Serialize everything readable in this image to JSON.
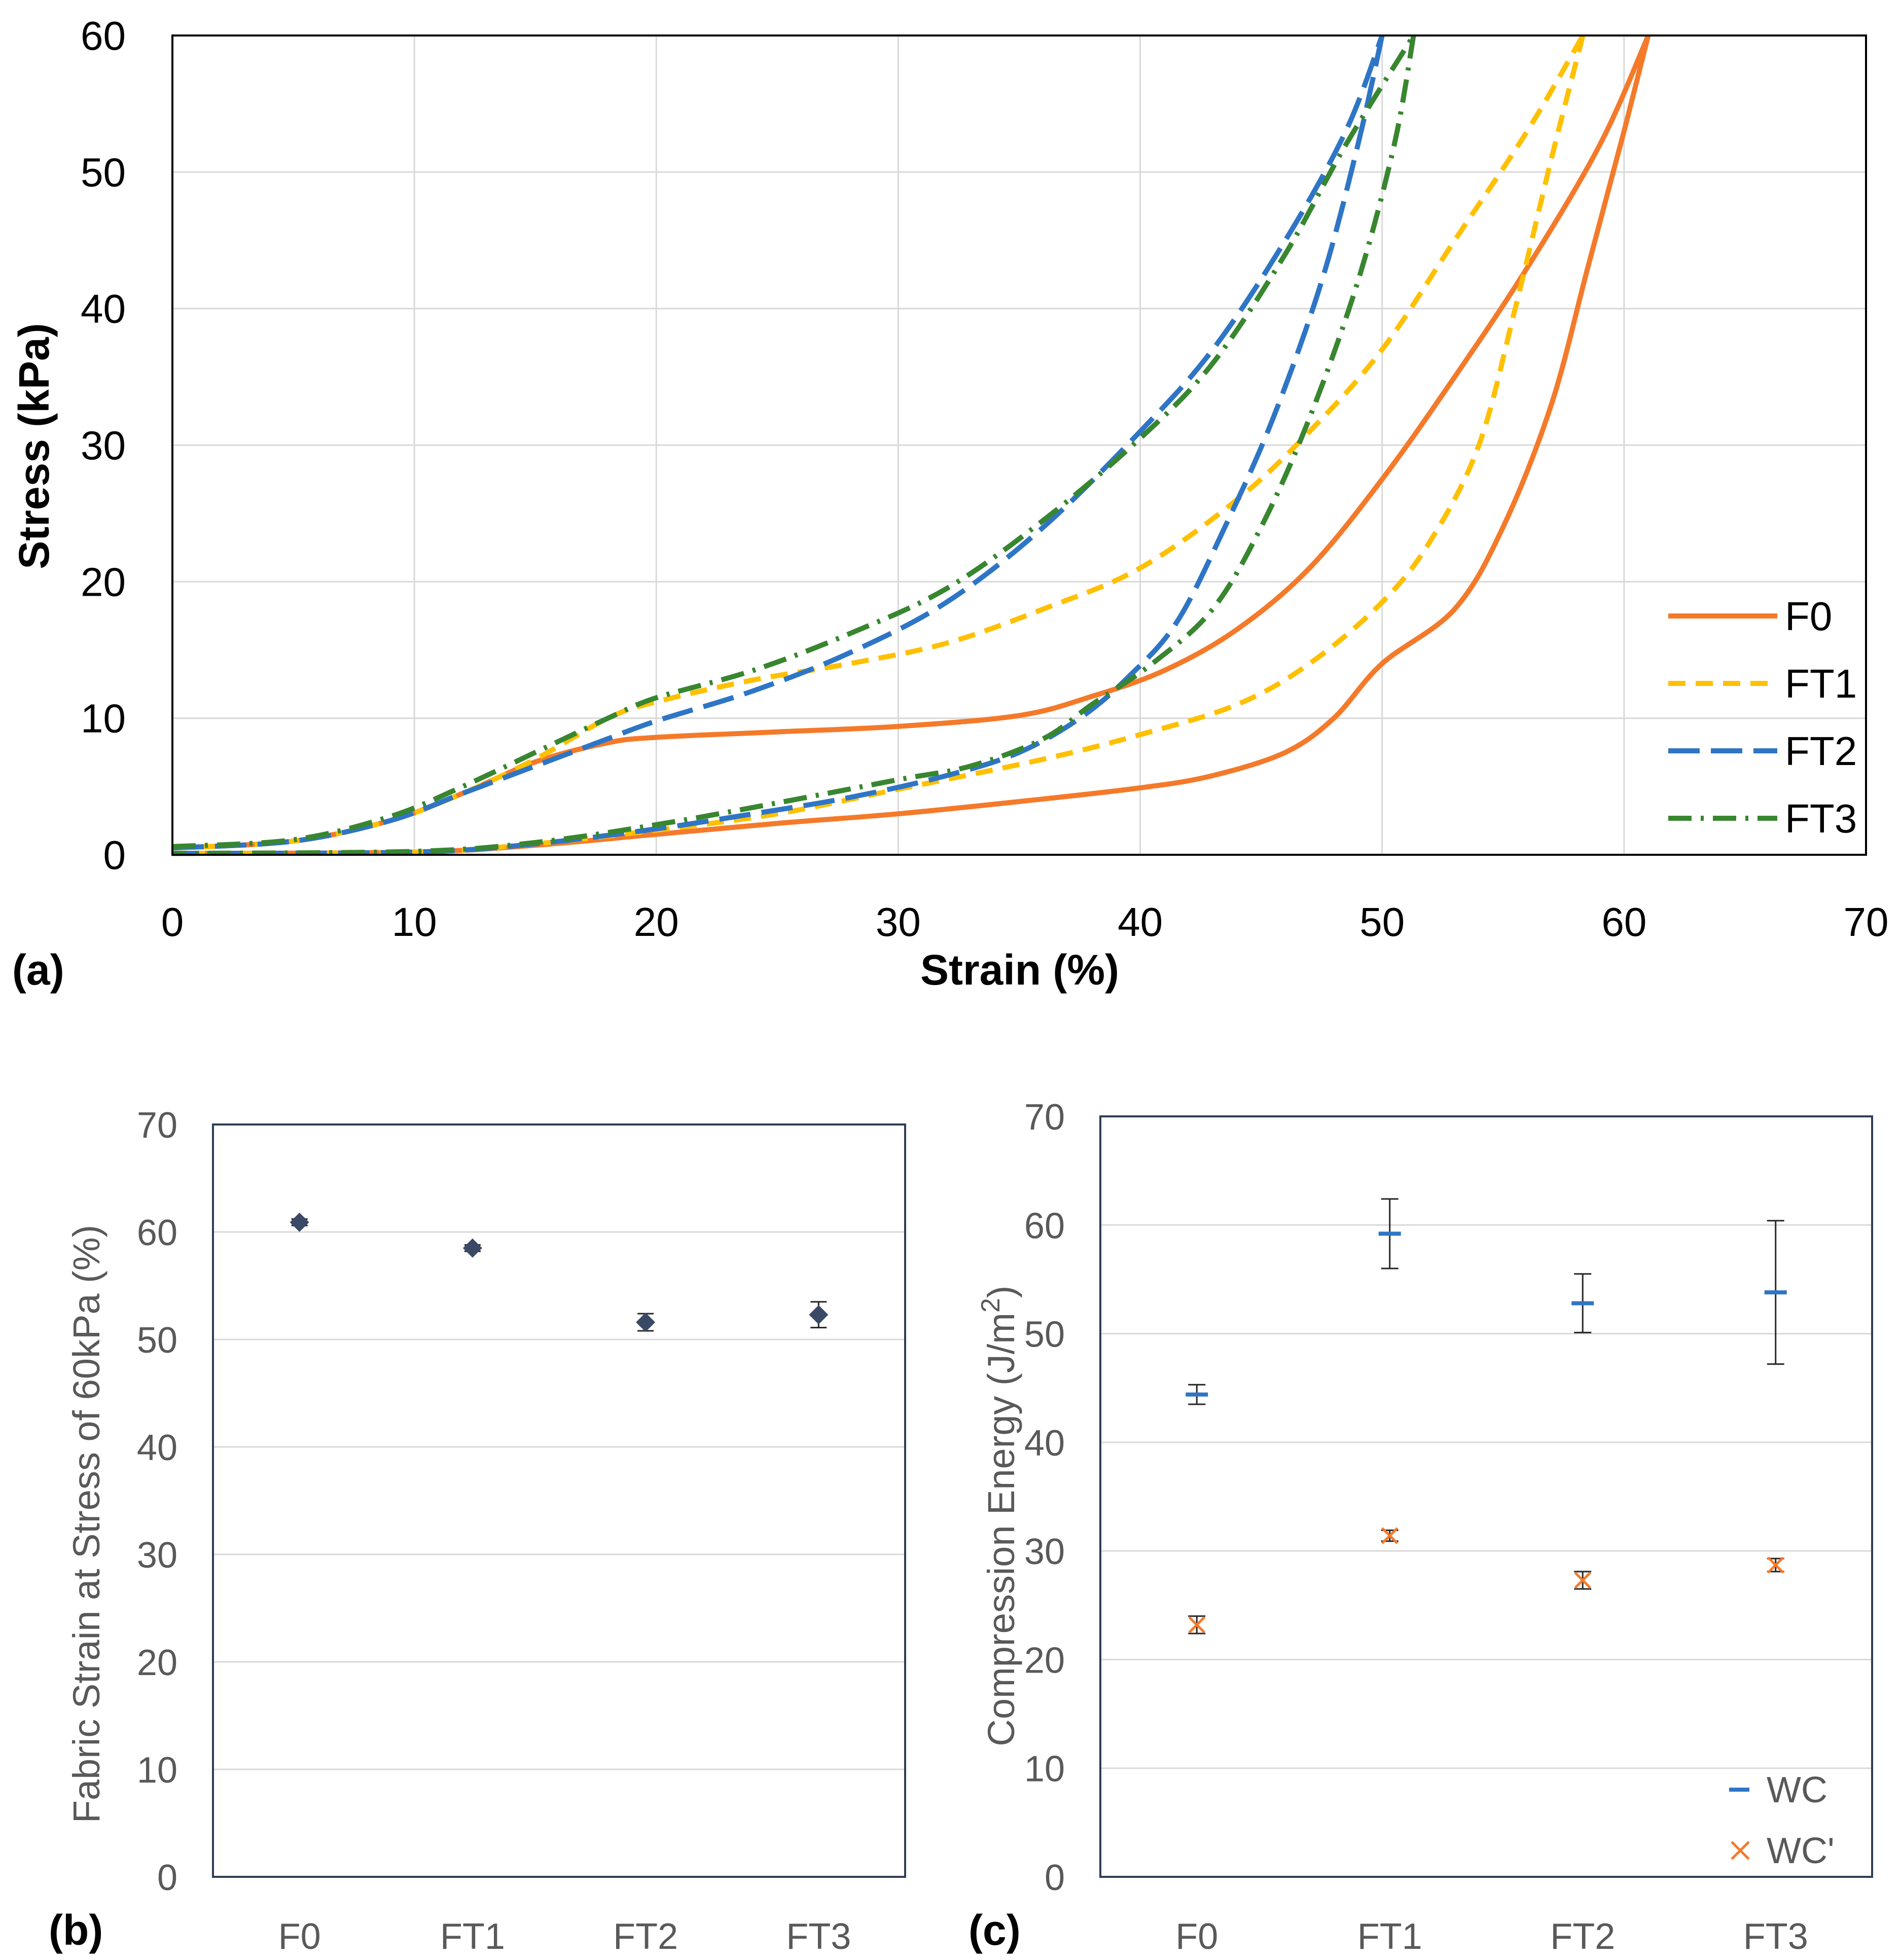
{
  "colors": {
    "F0": "#F47A2A",
    "FT1": "#FFC000",
    "FT2": "#2E75C6",
    "FT3": "#38862F",
    "marker_b": "#3A4A66",
    "WC": "#2E75C6",
    "WCp": "#F47A2A"
  },
  "chart_data": [
    {
      "id": "a",
      "type": "line",
      "panel_label": "(a)",
      "xlabel": "Strain (%)",
      "ylabel": "Stress (kPa)",
      "xlim": [
        0,
        70
      ],
      "ylim": [
        0,
        60
      ],
      "xticks": [
        "0",
        "10",
        "20",
        "30",
        "40",
        "50",
        "60",
        "70"
      ],
      "yticks": [
        "0",
        "10",
        "20",
        "30",
        "40",
        "50",
        "60"
      ],
      "grid": true,
      "legend": "bottom-right",
      "series": [
        {
          "name": "F0",
          "style": "solid",
          "loading": [
            [
              0,
              0.5
            ],
            [
              5,
              1
            ],
            [
              9,
              2.5
            ],
            [
              12,
              4.5
            ],
            [
              15,
              6.8
            ],
            [
              18,
              8.2
            ],
            [
              20,
              8.6
            ],
            [
              25,
              9
            ],
            [
              30,
              9.4
            ],
            [
              35,
              10.2
            ],
            [
              38,
              11.6
            ],
            [
              41,
              13.5
            ],
            [
              44,
              16.5
            ],
            [
              47,
              21
            ],
            [
              50,
              27.5
            ],
            [
              53,
              35
            ],
            [
              56,
              43
            ],
            [
              59,
              52
            ],
            [
              61,
              60
            ]
          ],
          "unloading": [
            [
              61,
              60
            ],
            [
              60,
              53
            ],
            [
              58.5,
              43
            ],
            [
              57,
              33
            ],
            [
              55,
              24
            ],
            [
              53,
              18
            ],
            [
              50,
              14
            ],
            [
              48,
              10
            ],
            [
              46,
              7.5
            ],
            [
              43,
              5.8
            ],
            [
              40,
              4.9
            ],
            [
              35,
              3.9
            ],
            [
              30,
              3
            ],
            [
              25,
              2.3
            ],
            [
              20,
              1.5
            ],
            [
              15,
              0.7
            ],
            [
              10,
              0.2
            ],
            [
              0,
              0.1
            ]
          ]
        },
        {
          "name": "FT1",
          "style": "dash",
          "loading": [
            [
              0,
              0.5
            ],
            [
              5,
              1
            ],
            [
              9,
              2.5
            ],
            [
              12,
              4.5
            ],
            [
              15,
              7
            ],
            [
              18,
              10
            ],
            [
              20,
              11.2
            ],
            [
              24,
              12.8
            ],
            [
              28,
              14
            ],
            [
              32,
              15.5
            ],
            [
              36,
              18
            ],
            [
              40,
              21
            ],
            [
              44,
              26
            ],
            [
              47,
              31
            ],
            [
              50,
              37
            ],
            [
              53,
              45
            ],
            [
              56,
              53
            ],
            [
              58.3,
              60
            ]
          ],
          "unloading": [
            [
              58.3,
              60
            ],
            [
              57,
              51
            ],
            [
              55.5,
              40
            ],
            [
              54,
              30
            ],
            [
              52,
              23
            ],
            [
              50,
              18.5
            ],
            [
              47,
              14
            ],
            [
              44,
              11
            ],
            [
              40,
              8.8
            ],
            [
              36,
              7
            ],
            [
              30,
              4.8
            ],
            [
              25,
              3
            ],
            [
              20,
              1.8
            ],
            [
              15,
              0.8
            ],
            [
              10,
              0.2
            ],
            [
              0,
              0.1
            ]
          ]
        },
        {
          "name": "FT2",
          "style": "longdash",
          "loading": [
            [
              0,
              0.5
            ],
            [
              5,
              1
            ],
            [
              9,
              2.5
            ],
            [
              12,
              4.5
            ],
            [
              15,
              6.5
            ],
            [
              18,
              8.5
            ],
            [
              20,
              9.8
            ],
            [
              24,
              12
            ],
            [
              28,
              14.8
            ],
            [
              32,
              18.5
            ],
            [
              36,
              24
            ],
            [
              40,
              31
            ],
            [
              43,
              37
            ],
            [
              46,
              45
            ],
            [
              48.5,
              53
            ],
            [
              50,
              60
            ]
          ],
          "unloading": [
            [
              50,
              60
            ],
            [
              49,
              52
            ],
            [
              47.5,
              42
            ],
            [
              45.5,
              32
            ],
            [
              43.5,
              24
            ],
            [
              41.5,
              17
            ],
            [
              39.5,
              13
            ],
            [
              37.5,
              10
            ],
            [
              35,
              7.5
            ],
            [
              32,
              5.8
            ],
            [
              28,
              4.2
            ],
            [
              24,
              3
            ],
            [
              20,
              1.9
            ],
            [
              15,
              0.8
            ],
            [
              10,
              0.2
            ],
            [
              0,
              0.1
            ]
          ]
        },
        {
          "name": "FT3",
          "style": "dashdot",
          "loading": [
            [
              0,
              0.6
            ],
            [
              5,
              1.1
            ],
            [
              9,
              2.8
            ],
            [
              12,
              5
            ],
            [
              15,
              7.5
            ],
            [
              18,
              10
            ],
            [
              20,
              11.5
            ],
            [
              24,
              13.5
            ],
            [
              28,
              16.2
            ],
            [
              32,
              19.5
            ],
            [
              36,
              24.5
            ],
            [
              40,
              30.5
            ],
            [
              43,
              36
            ],
            [
              46,
              44
            ],
            [
              48.5,
              52
            ],
            [
              51.3,
              60
            ]
          ],
          "unloading": [
            [
              51.3,
              60
            ],
            [
              50.5,
              52
            ],
            [
              49,
              42
            ],
            [
              47,
              32
            ],
            [
              45,
              24
            ],
            [
              43,
              18
            ],
            [
              40.5,
              14
            ],
            [
              38,
              11
            ],
            [
              36,
              8.5
            ],
            [
              33,
              6.5
            ],
            [
              30,
              5.5
            ],
            [
              25,
              3.8
            ],
            [
              20,
              2.2
            ],
            [
              15,
              0.9
            ],
            [
              10,
              0.25
            ],
            [
              0,
              0.1
            ]
          ]
        }
      ]
    },
    {
      "id": "b",
      "type": "scatter",
      "panel_label": "(b)",
      "xlabel": "",
      "ylabel": "Fabric Strain at Stress of 60kPa (%)",
      "categories": [
        "F0",
        "FT1",
        "FT2",
        "FT3"
      ],
      "ylim": [
        0,
        70
      ],
      "yticks": [
        "0",
        "10",
        "20",
        "30",
        "40",
        "50",
        "60",
        "70"
      ],
      "grid": true,
      "series": [
        {
          "name": "Strain",
          "values": [
            60.9,
            58.5,
            51.6,
            52.3
          ],
          "errors": [
            0.3,
            0.3,
            0.8,
            1.2
          ]
        }
      ]
    },
    {
      "id": "c",
      "type": "scatter",
      "panel_label": "(c)",
      "xlabel": "",
      "ylabel": "Compression Energy (J/m²)",
      "ylabel_parts": {
        "main": "Compression Energy (J/m",
        "sup": "2",
        "tail": ")"
      },
      "categories": [
        "F0",
        "FT1",
        "FT2",
        "FT3"
      ],
      "ylim": [
        0,
        70
      ],
      "yticks": [
        "0",
        "10",
        "20",
        "30",
        "40",
        "50",
        "60",
        "70"
      ],
      "grid": true,
      "legend": "bottom-right",
      "series": [
        {
          "name": "WC",
          "marker": "dash",
          "values": [
            44.4,
            59.2,
            52.8,
            53.8
          ],
          "errors": [
            0.9,
            3.2,
            2.7,
            6.6
          ]
        },
        {
          "name": "WC'",
          "marker": "x",
          "values": [
            23.2,
            31.4,
            27.3,
            28.7
          ],
          "errors": [
            0.8,
            0.5,
            0.8,
            0.6
          ]
        }
      ]
    }
  ]
}
